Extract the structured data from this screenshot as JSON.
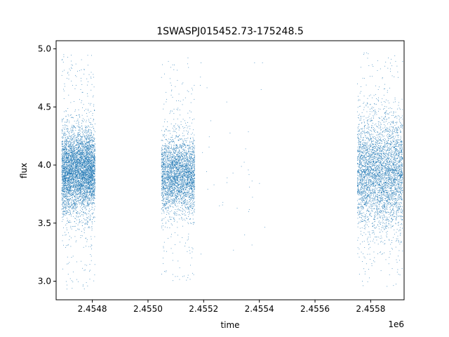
{
  "chart_data": {
    "type": "scatter",
    "title": "1SWASPJ015452.73-175248.5",
    "xlabel": "time",
    "ylabel": "flux",
    "x_offset_label": "1e6",
    "xlim": [
      2454670,
      2455920
    ],
    "ylim": [
      2.84,
      5.07
    ],
    "x_ticks": [
      2454800,
      2455000,
      2455200,
      2455400,
      2455600,
      2455800
    ],
    "x_tick_labels": [
      "2.4548",
      "2.4550",
      "2.4552",
      "2.4554",
      "2.4556",
      "2.4558"
    ],
    "y_ticks": [
      3.0,
      3.5,
      4.0,
      4.5,
      5.0
    ],
    "y_tick_labels": [
      "3.0",
      "3.5",
      "4.0",
      "4.5",
      "5.0"
    ],
    "grid": false,
    "marker_color": "#1f77b4",
    "series": [
      {
        "x_range": [
          2454690,
          2454810
        ],
        "y_mean": 3.95,
        "y_spread": 0.18,
        "y_min": 2.93,
        "y_max": 4.97,
        "points": 5200
      },
      {
        "x_range": [
          2455048,
          2455168
        ],
        "y_mean": 3.92,
        "y_spread": 0.16,
        "y_min": 3.0,
        "y_max": 4.93,
        "points": 3200
      },
      {
        "x_range": [
          2455180,
          2455420
        ],
        "y_mean": 4.0,
        "y_spread": 0.5,
        "y_min": 3.2,
        "y_max": 4.88,
        "points": 40
      },
      {
        "x_range": [
          2455752,
          2455915
        ],
        "y_mean": 3.93,
        "y_spread": 0.24,
        "y_min": 2.92,
        "y_max": 4.97,
        "points": 4200
      }
    ]
  }
}
